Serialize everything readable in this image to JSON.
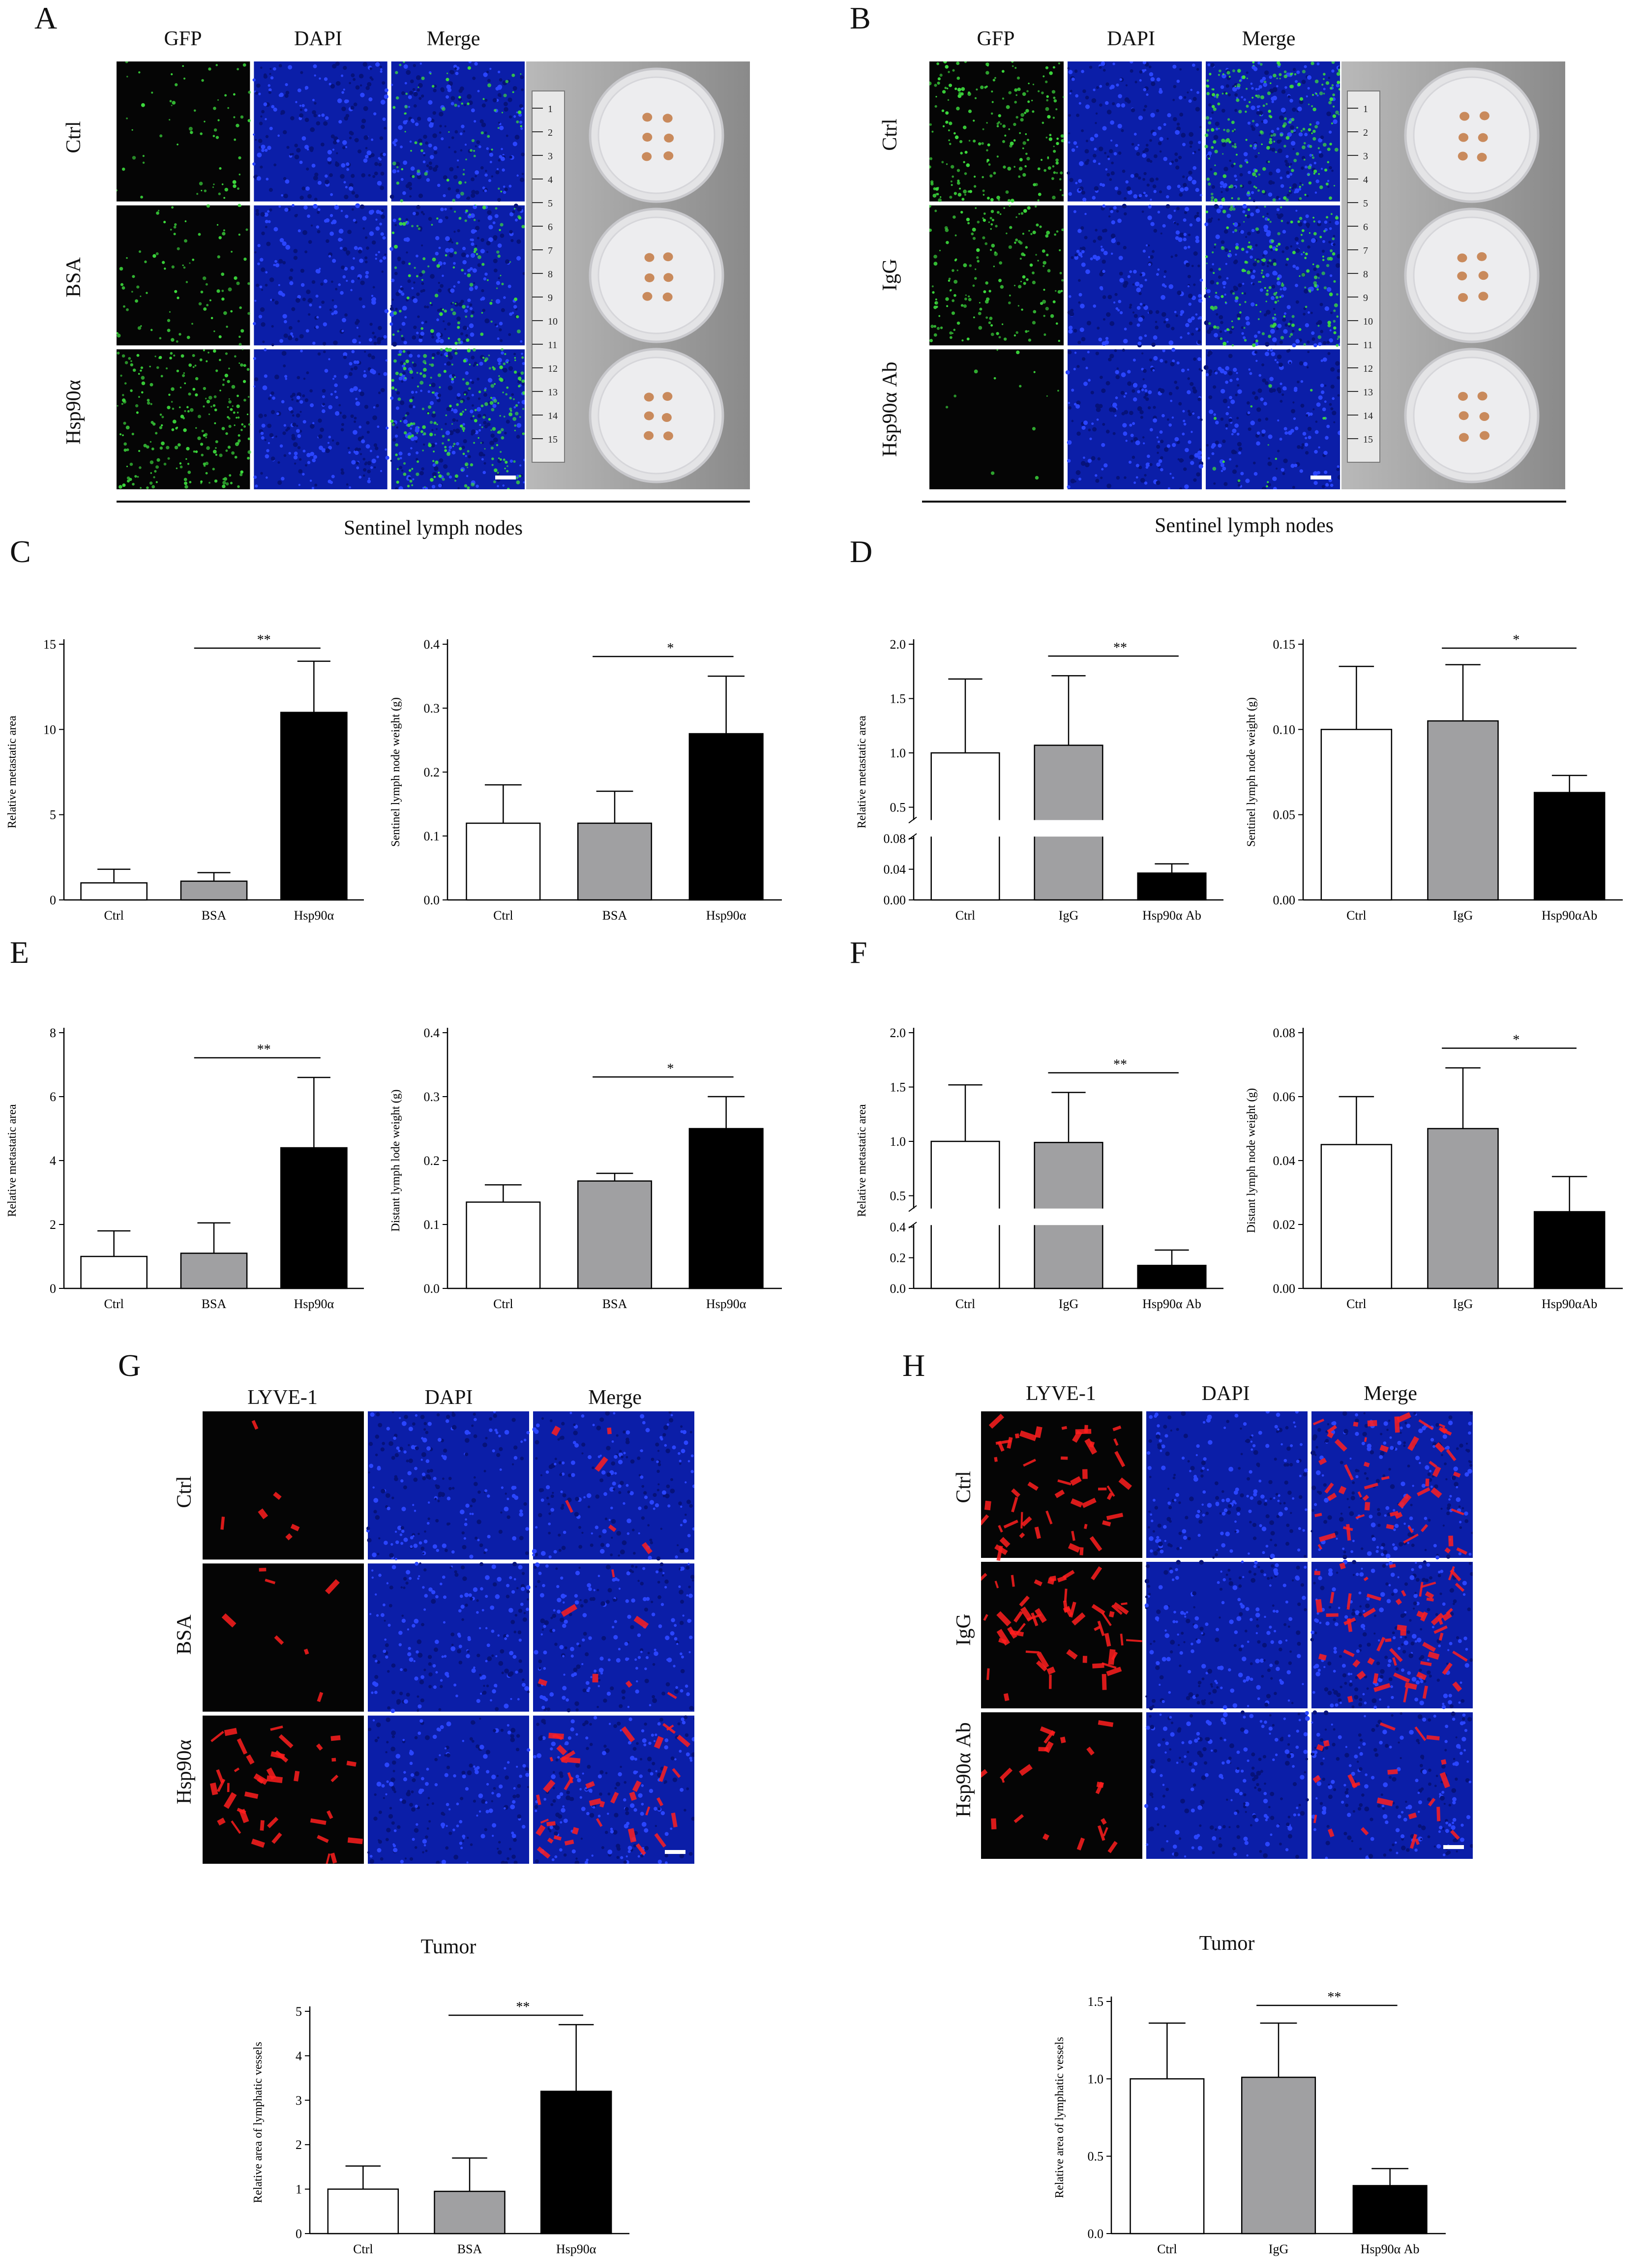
{
  "panels": {
    "A": {
      "letter": "A",
      "cols": [
        "GFP",
        "DAPI",
        "Merge"
      ],
      "rows": [
        "Ctrl",
        "BSA",
        "Hsp90α"
      ],
      "caption": "Sentinel lymph nodes"
    },
    "B": {
      "letter": "B",
      "cols": [
        "GFP",
        "DAPI",
        "Merge"
      ],
      "rows": [
        "Ctrl",
        "IgG",
        "Hsp90α Ab"
      ],
      "caption": "Sentinel lymph nodes"
    },
    "C": {
      "letter": "C"
    },
    "D": {
      "letter": "D"
    },
    "E": {
      "letter": "E"
    },
    "F": {
      "letter": "F"
    },
    "G": {
      "letter": "G",
      "cols": [
        "LYVE-1",
        "DAPI",
        "Merge"
      ],
      "rows": [
        "Ctrl",
        "BSA",
        "Hsp90α"
      ],
      "caption": "Tumor"
    },
    "H": {
      "letter": "H",
      "cols": [
        "LYVE-1",
        "DAPI",
        "Merge"
      ],
      "rows": [
        "Ctrl",
        "IgG",
        "Hsp90α Ab"
      ],
      "caption": "Tumor"
    }
  },
  "ruler_ticks": [
    "1",
    "2",
    "3",
    "4",
    "5",
    "6",
    "7",
    "8",
    "9",
    "10",
    "11",
    "12",
    "13",
    "14",
    "15"
  ],
  "colors": {
    "ctrl": "#ffffff",
    "mid": "#a0a0a2",
    "treat": "#000000",
    "gfp": "#3ddc3d",
    "dapi": "#1a2fd8",
    "lyve": "#ff1e1e"
  },
  "chart_data": [
    {
      "id": "C1",
      "type": "bar",
      "categories": [
        "Ctrl",
        "BSA",
        "Hsp90α"
      ],
      "values": [
        1.0,
        1.1,
        11.0
      ],
      "errors": [
        0.8,
        0.5,
        3.0
      ],
      "ylabel": "Relative metastatic area",
      "ylim": [
        0,
        15
      ],
      "yticks": [
        "0",
        "5",
        "10",
        "15"
      ],
      "sig": "**",
      "sig_between": [
        1,
        2
      ]
    },
    {
      "id": "C2",
      "type": "bar",
      "categories": [
        "Ctrl",
        "BSA",
        "Hsp90α"
      ],
      "values": [
        0.12,
        0.12,
        0.26
      ],
      "errors": [
        0.06,
        0.05,
        0.09
      ],
      "ylabel": "Sentinel lymph node weight (g)",
      "ylim": [
        0,
        0.4
      ],
      "yticks": [
        "0.0",
        "0.1",
        "0.2",
        "0.3",
        "0.4"
      ],
      "sig": "*",
      "sig_between": [
        1,
        2
      ]
    },
    {
      "id": "D1",
      "type": "bar",
      "categories": [
        "Ctrl",
        "IgG",
        "Hsp90α Ab"
      ],
      "values": [
        1.0,
        1.07,
        0.035
      ],
      "errors": [
        0.68,
        0.64,
        0.012
      ],
      "ylabel": "Relative metastatic area",
      "ylim": [
        0,
        2.0
      ],
      "yticks": [
        "0.00",
        "0.04",
        "0.08",
        "0.5",
        "1.0",
        "1.5",
        "2.0"
      ],
      "broken_axis": [
        0.08,
        0.4
      ],
      "sig": "**",
      "sig_between": [
        1,
        2
      ]
    },
    {
      "id": "D2",
      "type": "bar",
      "categories": [
        "Ctrl",
        "IgG",
        "Hsp90αAb"
      ],
      "values": [
        0.1,
        0.105,
        0.063
      ],
      "errors": [
        0.037,
        0.033,
        0.01
      ],
      "ylabel": "Sentinel lymph node weight (g)",
      "ylim": [
        0,
        0.15
      ],
      "yticks": [
        "0.00",
        "0.05",
        "0.10",
        "0.15"
      ],
      "sig": "*",
      "sig_between": [
        1,
        2
      ]
    },
    {
      "id": "E1",
      "type": "bar",
      "categories": [
        "Ctrl",
        "BSA",
        "Hsp90α"
      ],
      "values": [
        1.0,
        1.1,
        4.4
      ],
      "errors": [
        0.8,
        0.95,
        2.2
      ],
      "ylabel": "Relative metastatic area",
      "ylim": [
        0,
        8
      ],
      "yticks": [
        "0",
        "2",
        "4",
        "6",
        "8"
      ],
      "sig": "**",
      "sig_between": [
        1,
        2
      ]
    },
    {
      "id": "E2",
      "type": "bar",
      "categories": [
        "Ctrl",
        "BSA",
        "Hsp90α"
      ],
      "values": [
        0.135,
        0.168,
        0.25
      ],
      "errors": [
        0.027,
        0.012,
        0.05
      ],
      "ylabel": "Distant lymph lode weight (g)",
      "ylim": [
        0,
        0.4
      ],
      "yticks": [
        "0.0",
        "0.1",
        "0.2",
        "0.3",
        "0.4"
      ],
      "sig": "*",
      "sig_between": [
        1,
        2
      ]
    },
    {
      "id": "F1",
      "type": "bar",
      "categories": [
        "Ctrl",
        "IgG",
        "Hsp90α Ab"
      ],
      "values": [
        1.0,
        0.99,
        0.15
      ],
      "errors": [
        0.52,
        0.46,
        0.1
      ],
      "ylabel": "Relative metastatic area",
      "ylim": [
        0,
        2.0
      ],
      "yticks": [
        "0.0",
        "0.2",
        "0.4",
        "0.5",
        "1.0",
        "1.5",
        "2.0"
      ],
      "broken_axis": [
        0.4,
        0.4
      ],
      "sig": "**",
      "sig_between": [
        1,
        2
      ]
    },
    {
      "id": "F2",
      "type": "bar",
      "categories": [
        "Ctrl",
        "IgG",
        "Hsp90αAb"
      ],
      "values": [
        0.045,
        0.05,
        0.024
      ],
      "errors": [
        0.015,
        0.019,
        0.011
      ],
      "ylabel": "Distant lymph node weight (g)",
      "ylim": [
        0,
        0.08
      ],
      "yticks": [
        "0.00",
        "0.02",
        "0.04",
        "0.06",
        "0.08"
      ],
      "sig": "*",
      "sig_between": [
        1,
        2
      ]
    },
    {
      "id": "G1",
      "type": "bar",
      "categories": [
        "Ctrl",
        "BSA",
        "Hsp90α"
      ],
      "values": [
        1.0,
        0.95,
        3.2
      ],
      "errors": [
        0.52,
        0.75,
        1.5
      ],
      "ylabel": "Relative area of lymphatic vessels",
      "ylim": [
        0,
        5
      ],
      "yticks": [
        "0",
        "1",
        "2",
        "3",
        "4",
        "5"
      ],
      "sig": "**",
      "sig_between": [
        1,
        2
      ]
    },
    {
      "id": "H1",
      "type": "bar",
      "categories": [
        "Ctrl",
        "IgG",
        "Hsp90α Ab"
      ],
      "values": [
        1.0,
        1.01,
        0.31
      ],
      "errors": [
        0.36,
        0.35,
        0.11
      ],
      "ylabel": "Relative area of lymphatic vessels",
      "ylim": [
        0,
        1.5
      ],
      "yticks": [
        "0.0",
        "0.5",
        "1.0",
        "1.5"
      ],
      "sig": "**",
      "sig_between": [
        1,
        2
      ]
    }
  ]
}
